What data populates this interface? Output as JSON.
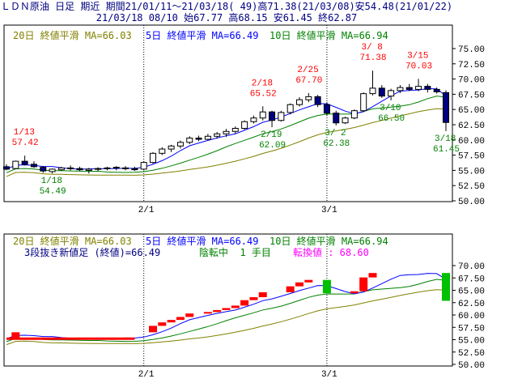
{
  "header": {
    "line1": "ＬＤＮ原油 日足 期近 期間21/01/11～21/03/18( 49)高71.38(21/03/08)安54.48(21/01/22)",
    "line2": "21/03/18 08/10 始67.77 高68.15 安61.45 終62.87"
  },
  "colors": {
    "up": "#ffffff",
    "down": "#000080",
    "ma5": "#0000ff",
    "ma10": "#008000",
    "ma20": "#808000",
    "annot": "#ff0000",
    "annot2": "#008000",
    "grid": "#000000",
    "kagi_up": "#ff0000",
    "kagi_down": "#00c000"
  },
  "top_chart": {
    "legend": {
      "ma20": "20日 終値平滑 MA=66.03",
      "ma5": "5日 終値平滑 MA=66.49",
      "ma10": "10日 終値平滑 MA=66.94"
    },
    "y_ticks": [
      "75.00",
      "72.50",
      "70.00",
      "67.50",
      "65.00",
      "62.50",
      "60.00",
      "57.50",
      "55.00",
      "52.50",
      "50.00"
    ],
    "x_ticks": [
      "2/1",
      "3/1"
    ],
    "annotations": [
      {
        "date": "1/13",
        "value": "57.42",
        "color": "red"
      },
      {
        "date": "1/18",
        "value": "54.49",
        "color": "green"
      },
      {
        "date": "2/18",
        "value": "65.52",
        "color": "red"
      },
      {
        "date": "2/19",
        "value": "62.09",
        "color": "green"
      },
      {
        "date": "2/25",
        "value": "67.70",
        "color": "red"
      },
      {
        "date": "3/ 2",
        "value": "62.38",
        "color": "green"
      },
      {
        "date": "3/ 8",
        "value": "71.38",
        "color": "red"
      },
      {
        "date": "3/10",
        "value": "66.50",
        "color": "green"
      },
      {
        "date": "3/15",
        "value": "70.03",
        "color": "red"
      },
      {
        "date": "3/18",
        "value": "61.45",
        "color": "green"
      }
    ]
  },
  "bottom_chart": {
    "legend": {
      "ma20": "20日 終値平滑 MA=66.03",
      "ma5": "5日 終値平滑 MA=66.49",
      "ma10": "10日 終値平滑 MA=66.94"
    },
    "legend2_a": "3段抜き新値足 (終値)=66.49",
    "legend2_b": "陰転中  1 手目",
    "legend2_c": "転換値 : 68.60",
    "y_ticks": [
      "70.00",
      "67.50",
      "65.00",
      "62.50",
      "60.00",
      "57.50",
      "55.00",
      "52.50",
      "50.00"
    ],
    "x_ticks": [
      "2/1",
      "3/1"
    ]
  },
  "chart_data": [
    {
      "type": "candlestick",
      "ylim": [
        50,
        77
      ],
      "x_ticks": [
        "2/1",
        "3/1"
      ],
      "dates": [
        "1/11",
        "1/12",
        "1/13",
        "1/14",
        "1/15",
        "1/18",
        "1/19",
        "1/20",
        "1/21",
        "1/22",
        "1/25",
        "1/26",
        "1/27",
        "1/28",
        "1/29",
        "2/1",
        "2/2",
        "2/3",
        "2/4",
        "2/5",
        "2/8",
        "2/9",
        "2/10",
        "2/11",
        "2/12",
        "2/15",
        "2/16",
        "2/17",
        "2/18",
        "2/19",
        "2/22",
        "2/23",
        "2/24",
        "2/25",
        "2/26",
        "3/1",
        "3/2",
        "3/3",
        "3/4",
        "3/5",
        "3/8",
        "3/9",
        "3/10",
        "3/11",
        "3/12",
        "3/15",
        "3/16",
        "3/17",
        "3/18"
      ],
      "ohlc": [
        [
          55.6,
          56.0,
          55.0,
          55.2
        ],
        [
          55.3,
          56.6,
          55.2,
          56.5
        ],
        [
          56.5,
          57.42,
          55.8,
          56.0
        ],
        [
          56.0,
          56.5,
          55.4,
          55.6
        ],
        [
          55.5,
          55.7,
          54.6,
          54.9
        ],
        [
          54.8,
          55.3,
          54.49,
          55.2
        ],
        [
          55.1,
          55.6,
          54.9,
          55.4
        ],
        [
          55.4,
          55.8,
          55.0,
          55.3
        ],
        [
          55.3,
          55.6,
          54.9,
          55.1
        ],
        [
          55.0,
          55.4,
          54.48,
          55.2
        ],
        [
          55.2,
          55.5,
          54.9,
          55.3
        ],
        [
          55.3,
          55.6,
          55.0,
          55.4
        ],
        [
          55.4,
          55.7,
          55.0,
          55.5
        ],
        [
          55.4,
          55.7,
          55.0,
          55.3
        ],
        [
          55.3,
          55.6,
          54.9,
          55.1
        ],
        [
          55.2,
          56.5,
          55.0,
          56.3
        ],
        [
          56.3,
          58.0,
          56.1,
          57.8
        ],
        [
          57.8,
          58.8,
          57.5,
          58.5
        ],
        [
          58.5,
          59.2,
          58.0,
          59.0
        ],
        [
          59.0,
          59.9,
          58.6,
          59.6
        ],
        [
          59.6,
          60.6,
          59.3,
          60.3
        ],
        [
          60.3,
          60.7,
          59.8,
          60.1
        ],
        [
          60.1,
          61.0,
          59.9,
          60.6
        ],
        [
          60.6,
          61.3,
          60.2,
          61.0
        ],
        [
          61.0,
          61.8,
          60.5,
          61.4
        ],
        [
          61.4,
          62.2,
          61.0,
          61.9
        ],
        [
          61.9,
          63.2,
          61.7,
          63.0
        ],
        [
          63.0,
          64.0,
          62.7,
          63.6
        ],
        [
          63.6,
          65.52,
          63.2,
          64.6
        ],
        [
          64.6,
          64.8,
          62.09,
          63.2
        ],
        [
          63.2,
          64.8,
          63.0,
          64.5
        ],
        [
          64.5,
          66.0,
          64.2,
          65.8
        ],
        [
          65.8,
          67.0,
          65.5,
          66.6
        ],
        [
          66.6,
          67.7,
          66.2,
          67.1
        ],
        [
          67.1,
          67.4,
          65.4,
          65.8
        ],
        [
          65.8,
          66.2,
          64.0,
          64.4
        ],
        [
          64.4,
          64.8,
          62.38,
          62.8
        ],
        [
          62.8,
          63.8,
          62.6,
          63.6
        ],
        [
          63.6,
          65.0,
          63.4,
          64.8
        ],
        [
          64.8,
          67.8,
          64.6,
          67.6
        ],
        [
          67.6,
          71.38,
          67.3,
          68.5
        ],
        [
          68.5,
          69.0,
          66.9,
          67.2
        ],
        [
          67.2,
          68.4,
          66.5,
          68.1
        ],
        [
          68.1,
          69.0,
          67.7,
          68.6
        ],
        [
          68.6,
          69.2,
          68.0,
          68.3
        ],
        [
          68.3,
          70.03,
          68.0,
          68.8
        ],
        [
          68.8,
          69.2,
          67.8,
          68.3
        ],
        [
          68.3,
          68.6,
          67.6,
          67.9
        ],
        [
          67.77,
          68.15,
          61.45,
          62.87
        ]
      ]
    },
    {
      "type": "new-price-three-line-break",
      "ylim": [
        50,
        72
      ],
      "x_ticks": [
        "2/1",
        "3/1"
      ],
      "series": [
        {
          "name": "3段抜き新値足 (終値)",
          "values": [
            66.49
          ]
        }
      ],
      "reversal_value": 68.6
    }
  ]
}
